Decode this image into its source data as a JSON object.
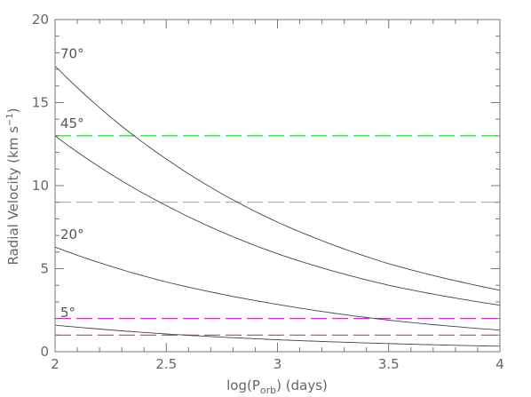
{
  "chart_data": {
    "type": "line",
    "xlabel_parts": {
      "pre": "log(P",
      "sub": "orb",
      "post": ") (days)"
    },
    "ylabel_parts": {
      "pre": "Radial Velocity (km s",
      "sup": "−1",
      "post": ")"
    },
    "xlim": [
      2,
      4
    ],
    "ylim": [
      0,
      20
    ],
    "x_ticks": [
      2,
      2.5,
      3,
      3.5,
      4
    ],
    "x_tick_labels": [
      "2",
      "2.5",
      "3",
      "3.5",
      "4"
    ],
    "y_ticks": [
      0,
      5,
      10,
      15,
      20
    ],
    "y_tick_labels": [
      "0",
      "5",
      "10",
      "15",
      "20"
    ],
    "series": [
      {
        "name": "70°",
        "x": [
          2,
          2.5,
          3,
          3.5,
          4
        ],
        "y": [
          17.2,
          11.6,
          7.8,
          5.3,
          3.7
        ]
      },
      {
        "name": "45°",
        "x": [
          2,
          2.5,
          3,
          3.5,
          4
        ],
        "y": [
          13.0,
          8.8,
          5.9,
          4.0,
          2.8
        ]
      },
      {
        "name": "20°",
        "x": [
          2,
          2.5,
          3,
          3.5,
          4
        ],
        "y": [
          6.3,
          4.2,
          2.85,
          1.9,
          1.3
        ]
      },
      {
        "name": "5°",
        "x": [
          2,
          2.5,
          3,
          3.5,
          4
        ],
        "y": [
          1.6,
          1.07,
          0.72,
          0.49,
          0.33
        ]
      }
    ],
    "reference_lines": [
      {
        "y": 13,
        "color": "#22dd22"
      },
      {
        "y": 9,
        "color": "#aaaaaa"
      },
      {
        "y": 2,
        "color": "#cc33cc"
      },
      {
        "y": 1,
        "color": "#cc4444"
      }
    ],
    "grid": false
  }
}
